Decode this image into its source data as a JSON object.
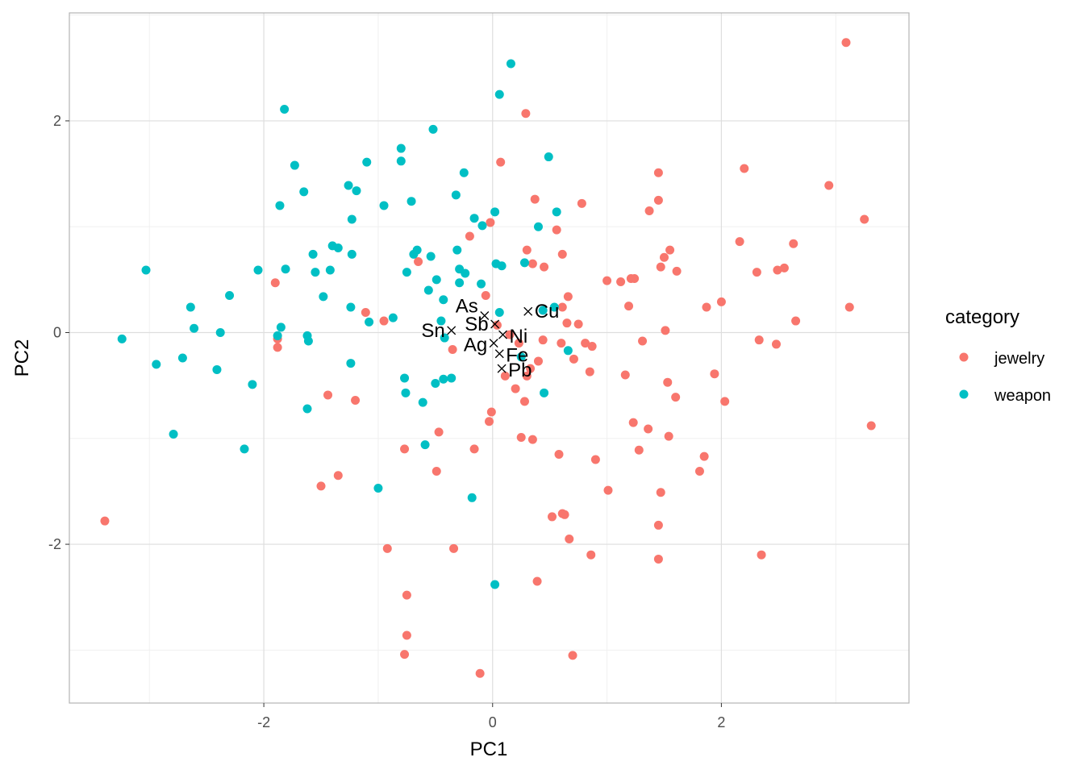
{
  "chart_data": {
    "type": "scatter",
    "title": "",
    "xlabel": "PC1",
    "ylabel": "PC2",
    "xlim": [
      -3.7,
      3.64
    ],
    "ylim": [
      -3.5,
      3.02
    ],
    "x_ticks": [
      -2,
      0,
      2
    ],
    "y_ticks": [
      -2,
      0,
      2
    ],
    "x_tick_labels": [
      "-2",
      "0",
      "2"
    ],
    "y_tick_labels": [
      "-2",
      "0",
      "2"
    ],
    "x_minor": [
      -3,
      -1,
      1,
      3
    ],
    "y_minor": [
      -3,
      -1,
      1,
      3
    ],
    "grid": true,
    "legend": {
      "title": "category",
      "placement": "right",
      "entries": [
        {
          "name": "jewelry",
          "color": "#F8766D"
        },
        {
          "name": "weapon",
          "color": "#00BFC4"
        }
      ]
    },
    "series": [
      {
        "name": "jewelry",
        "color": "#F8766D",
        "points": [
          [
            -3.39,
            -1.78
          ],
          [
            3.09,
            2.74
          ],
          [
            0.29,
            2.07
          ],
          [
            0.07,
            1.61
          ],
          [
            2.2,
            1.55
          ],
          [
            1.45,
            1.51
          ],
          [
            2.94,
            1.39
          ],
          [
            0.37,
            1.26
          ],
          [
            0.78,
            1.22
          ],
          [
            1.45,
            1.25
          ],
          [
            1.37,
            1.15
          ],
          [
            3.25,
            1.07
          ],
          [
            -0.02,
            1.04
          ],
          [
            0.56,
            0.97
          ],
          [
            -0.2,
            0.91
          ],
          [
            0.3,
            0.78
          ],
          [
            2.16,
            0.86
          ],
          [
            1.55,
            0.78
          ],
          [
            2.63,
            0.84
          ],
          [
            1.5,
            0.71
          ],
          [
            0.61,
            0.74
          ],
          [
            -0.65,
            0.67
          ],
          [
            0.35,
            0.65
          ],
          [
            0.45,
            0.62
          ],
          [
            2.31,
            0.57
          ],
          [
            2.49,
            0.59
          ],
          [
            2.55,
            0.61
          ],
          [
            1.47,
            0.62
          ],
          [
            1.61,
            0.58
          ],
          [
            -1.9,
            0.47
          ],
          [
            1.0,
            0.49
          ],
          [
            1.12,
            0.48
          ],
          [
            1.21,
            0.51
          ],
          [
            1.24,
            0.51
          ],
          [
            -0.06,
            0.35
          ],
          [
            0.66,
            0.34
          ],
          [
            0.61,
            0.24
          ],
          [
            1.19,
            0.25
          ],
          [
            2.0,
            0.29
          ],
          [
            1.87,
            0.24
          ],
          [
            3.12,
            0.24
          ],
          [
            2.65,
            0.11
          ],
          [
            -1.11,
            0.19
          ],
          [
            -0.95,
            0.11
          ],
          [
            0.04,
            0.07
          ],
          [
            1.51,
            0.02
          ],
          [
            0.65,
            0.09
          ],
          [
            0.75,
            0.08
          ],
          [
            0.23,
            -0.1
          ],
          [
            0.44,
            -0.07
          ],
          [
            0.6,
            -0.1
          ],
          [
            0.81,
            -0.1
          ],
          [
            0.87,
            -0.13
          ],
          [
            1.31,
            -0.08
          ],
          [
            2.33,
            -0.07
          ],
          [
            2.48,
            -0.11
          ],
          [
            -0.35,
            -0.16
          ],
          [
            -1.88,
            -0.06
          ],
          [
            -1.88,
            -0.14
          ],
          [
            0.4,
            -0.27
          ],
          [
            0.71,
            -0.25
          ],
          [
            0.85,
            -0.37
          ],
          [
            0.33,
            -0.34
          ],
          [
            0.3,
            -0.41
          ],
          [
            1.16,
            -0.4
          ],
          [
            1.94,
            -0.39
          ],
          [
            0.11,
            -0.41
          ],
          [
            1.53,
            -0.47
          ],
          [
            -1.44,
            -0.59
          ],
          [
            -1.2,
            -0.64
          ],
          [
            0.2,
            -0.53
          ],
          [
            1.6,
            -0.61
          ],
          [
            0.28,
            -0.65
          ],
          [
            2.03,
            -0.65
          ],
          [
            -0.01,
            -0.75
          ],
          [
            -0.03,
            -0.84
          ],
          [
            1.23,
            -0.85
          ],
          [
            1.36,
            -0.91
          ],
          [
            3.31,
            -0.88
          ],
          [
            -0.47,
            -0.94
          ],
          [
            0.25,
            -0.99
          ],
          [
            0.35,
            -1.01
          ],
          [
            1.54,
            -0.98
          ],
          [
            -0.77,
            -1.1
          ],
          [
            -0.16,
            -1.1
          ],
          [
            1.28,
            -1.11
          ],
          [
            0.58,
            -1.15
          ],
          [
            1.85,
            -1.17
          ],
          [
            0.9,
            -1.2
          ],
          [
            -0.49,
            -1.31
          ],
          [
            -1.35,
            -1.35
          ],
          [
            -1.5,
            -1.45
          ],
          [
            1.81,
            -1.31
          ],
          [
            1.01,
            -1.49
          ],
          [
            1.47,
            -1.51
          ],
          [
            0.52,
            -1.74
          ],
          [
            0.61,
            -1.71
          ],
          [
            0.63,
            -1.72
          ],
          [
            1.45,
            -1.82
          ],
          [
            0.67,
            -1.95
          ],
          [
            -0.92,
            -2.04
          ],
          [
            -0.34,
            -2.04
          ],
          [
            0.86,
            -2.1
          ],
          [
            1.45,
            -2.14
          ],
          [
            2.35,
            -2.1
          ],
          [
            0.39,
            -2.35
          ],
          [
            -0.75,
            -2.48
          ],
          [
            -0.75,
            -2.86
          ],
          [
            -0.77,
            -3.04
          ],
          [
            0.7,
            -3.05
          ],
          [
            -0.11,
            -3.22
          ],
          [
            0.15,
            -0.02
          ]
        ]
      },
      {
        "name": "weapon",
        "color": "#00BFC4",
        "points": [
          [
            0.16,
            2.54
          ],
          [
            0.06,
            2.25
          ],
          [
            -1.82,
            2.11
          ],
          [
            -0.52,
            1.92
          ],
          [
            -0.8,
            1.74
          ],
          [
            -0.8,
            1.62
          ],
          [
            -1.73,
            1.58
          ],
          [
            -1.1,
            1.61
          ],
          [
            -0.25,
            1.51
          ],
          [
            0.49,
            1.66
          ],
          [
            -1.65,
            1.33
          ],
          [
            -1.26,
            1.39
          ],
          [
            -1.19,
            1.34
          ],
          [
            -0.71,
            1.24
          ],
          [
            -0.32,
            1.3
          ],
          [
            -1.86,
            1.2
          ],
          [
            -0.95,
            1.2
          ],
          [
            -0.16,
            1.08
          ],
          [
            0.02,
            1.14
          ],
          [
            0.56,
            1.14
          ],
          [
            -1.23,
            1.07
          ],
          [
            -0.09,
            1.01
          ],
          [
            0.4,
            1.0
          ],
          [
            -1.4,
            0.82
          ],
          [
            -1.35,
            0.8
          ],
          [
            -1.57,
            0.74
          ],
          [
            -1.23,
            0.74
          ],
          [
            -2.05,
            0.59
          ],
          [
            -3.03,
            0.59
          ],
          [
            -1.81,
            0.6
          ],
          [
            -1.55,
            0.57
          ],
          [
            -1.42,
            0.59
          ],
          [
            -0.66,
            0.78
          ],
          [
            -0.69,
            0.74
          ],
          [
            -0.54,
            0.72
          ],
          [
            -0.31,
            0.78
          ],
          [
            -0.75,
            0.57
          ],
          [
            -0.29,
            0.6
          ],
          [
            -0.24,
            0.56
          ],
          [
            0.03,
            0.65
          ],
          [
            0.08,
            0.63
          ],
          [
            0.28,
            0.66
          ],
          [
            -0.49,
            0.5
          ],
          [
            -0.56,
            0.4
          ],
          [
            -0.1,
            0.46
          ],
          [
            -2.3,
            0.35
          ],
          [
            -1.48,
            0.34
          ],
          [
            -0.43,
            0.31
          ],
          [
            -0.29,
            0.47
          ],
          [
            -2.64,
            0.24
          ],
          [
            -1.24,
            0.24
          ],
          [
            0.44,
            0.21
          ],
          [
            0.54,
            0.24
          ],
          [
            -0.87,
            0.14
          ],
          [
            0.06,
            0.19
          ],
          [
            -1.08,
            0.1
          ],
          [
            -0.45,
            0.11
          ],
          [
            -2.61,
            0.04
          ],
          [
            -1.85,
            0.05
          ],
          [
            -2.38,
            0.0
          ],
          [
            -3.24,
            -0.06
          ],
          [
            -1.62,
            -0.03
          ],
          [
            -1.61,
            -0.08
          ],
          [
            -0.42,
            -0.05
          ],
          [
            -1.88,
            -0.03
          ],
          [
            -2.71,
            -0.24
          ],
          [
            0.25,
            -0.23
          ],
          [
            0.66,
            -0.17
          ],
          [
            -2.94,
            -0.3
          ],
          [
            -2.41,
            -0.35
          ],
          [
            -1.24,
            -0.29
          ],
          [
            -0.77,
            -0.43
          ],
          [
            -0.36,
            -0.43
          ],
          [
            -0.5,
            -0.48
          ],
          [
            -0.43,
            -0.44
          ],
          [
            -2.1,
            -0.49
          ],
          [
            -0.76,
            -0.57
          ],
          [
            0.45,
            -0.57
          ],
          [
            -1.62,
            -0.72
          ],
          [
            -0.61,
            -0.66
          ],
          [
            -2.79,
            -0.96
          ],
          [
            -2.17,
            -1.1
          ],
          [
            -0.59,
            -1.06
          ],
          [
            -1.0,
            -1.47
          ],
          [
            -0.18,
            -1.56
          ],
          [
            0.02,
            -2.38
          ]
        ]
      }
    ],
    "annotations": [
      {
        "label": "As",
        "x": -0.07,
        "y": 0.16
      },
      {
        "label": "Sb",
        "x": 0.02,
        "y": 0.08
      },
      {
        "label": "Cu",
        "x": 0.31,
        "y": 0.2
      },
      {
        "label": "Sn",
        "x": -0.36,
        "y": 0.02
      },
      {
        "label": "Ni",
        "x": 0.09,
        "y": -0.02
      },
      {
        "label": "Ag",
        "x": 0.01,
        "y": -0.1
      },
      {
        "label": "Fe",
        "x": 0.06,
        "y": -0.2
      },
      {
        "label": "Pb",
        "x": 0.08,
        "y": -0.34
      }
    ]
  }
}
